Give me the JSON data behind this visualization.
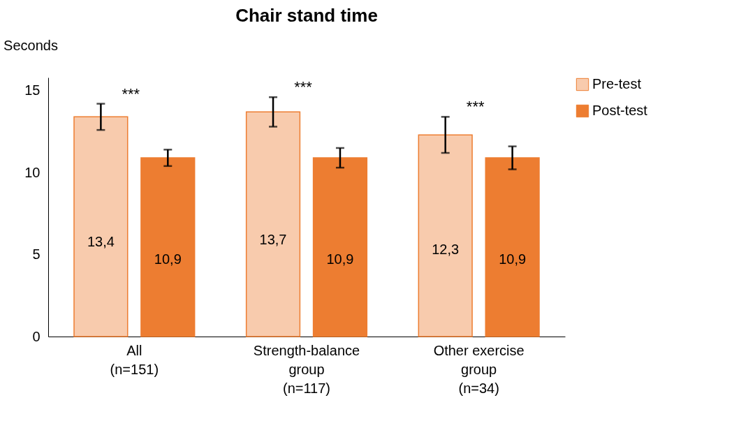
{
  "chart_data": {
    "type": "bar",
    "title": "Chair stand time",
    "ylabel": "Seconds",
    "categories": [
      "All\n(n=151)",
      "Strength-balance\ngroup\n(n=117)",
      "Other exercise\ngroup\n(n=34)"
    ],
    "series": [
      {
        "name": "Pre-test",
        "color": "#f8cbad",
        "values": [
          13.4,
          13.7,
          12.3
        ],
        "errors": [
          0.8,
          0.9,
          1.1
        ],
        "value_labels": [
          "13,4",
          "13,7",
          "12,3"
        ]
      },
      {
        "name": "Post-test",
        "color": "#ed7d31",
        "values": [
          10.9,
          10.9,
          10.9
        ],
        "errors": [
          0.5,
          0.6,
          0.7
        ],
        "value_labels": [
          "10,9",
          "10,9",
          "10,9"
        ]
      }
    ],
    "ylim": [
      0,
      15.8
    ],
    "yticks": [
      0,
      5,
      10,
      15
    ],
    "grid": false,
    "legend": "right",
    "annotations": [
      "***",
      "***",
      "***"
    ]
  }
}
